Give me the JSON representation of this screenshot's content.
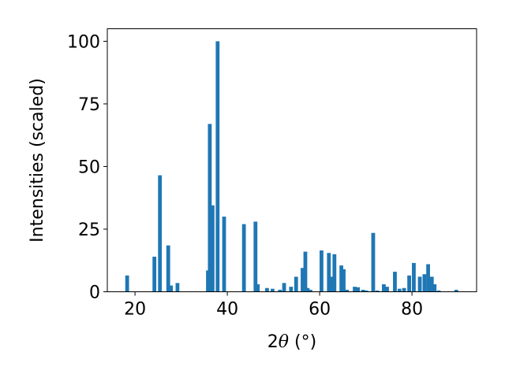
{
  "chart_data": {
    "type": "bar",
    "title": "",
    "xlabel_parts": {
      "prefix": "2",
      "theta": "θ",
      "suffix": " (°)"
    },
    "ylabel": "Intensities (scaled)",
    "xlim": [
      14,
      94
    ],
    "ylim": [
      0,
      105
    ],
    "xticks": [
      20,
      40,
      60,
      80
    ],
    "yticks": [
      0,
      25,
      50,
      75,
      100
    ],
    "bar_color": "#1f77b4",
    "grid": false,
    "legend": "none",
    "x": [
      18.3,
      24.2,
      25.4,
      27.2,
      27.8,
      29.2,
      35.8,
      36.2,
      36.8,
      37.9,
      39.3,
      43.6,
      46.1,
      46.6,
      48.6,
      49.8,
      51.4,
      52.3,
      53.8,
      54.9,
      56.3,
      56.9,
      57.4,
      58.0,
      60.4,
      62.0,
      62.6,
      63.2,
      64.7,
      65.2,
      65.9,
      67.6,
      68.3,
      69.4,
      70.1,
      71.6,
      72.5,
      73.9,
      74.6,
      76.3,
      77.3,
      78.3,
      79.4,
      80.4,
      81.7,
      82.7,
      83.5,
      84.3,
      84.9,
      85.8,
      89.6
    ],
    "values": [
      6.5,
      14,
      46.5,
      18.5,
      2.5,
      3.5,
      8.5,
      67,
      34.5,
      100,
      30,
      27,
      28,
      3,
      1.5,
      1.2,
      0.8,
      3.5,
      2,
      6,
      9.5,
      16,
      1.5,
      0.8,
      16.5,
      15.5,
      6,
      15,
      10.5,
      9,
      0.8,
      2,
      1.8,
      0.8,
      0.5,
      23.5,
      0.5,
      3,
      2,
      8,
      1.2,
      1.5,
      6.5,
      11.5,
      6,
      7,
      11,
      6,
      3,
      0.5,
      0.8
    ]
  }
}
